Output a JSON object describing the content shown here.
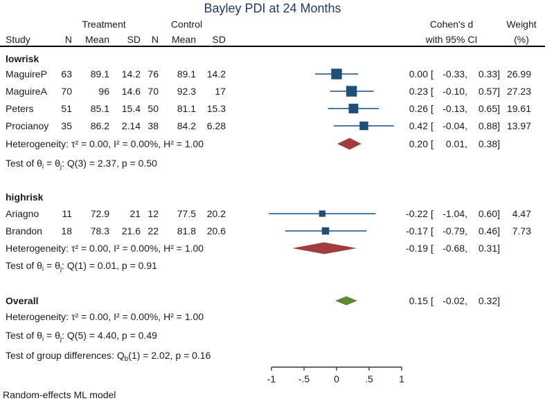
{
  "title": "Bayley PDI at 24 Months",
  "note": "Random-effects ML model",
  "header": {
    "study": "Study",
    "treatment": "Treatment",
    "control": "Control",
    "n": "N",
    "mean": "Mean",
    "sd": "SD",
    "effect_line1": "Cohen's d",
    "effect_line2": "with 95% CI",
    "weight_line1": "Weight",
    "weight_line2": "(%)"
  },
  "colors": {
    "title": "#1f3864",
    "text": "#1a1a1a",
    "square": "#1f4e79",
    "ci_line": "#4a78a6",
    "subgroup_diamond": "#a33c3e",
    "overall_diamond": "#5a8a32",
    "axis": "#333333",
    "rule": "#000000"
  },
  "chart_data": {
    "type": "forest",
    "title": "Bayley PDI at 24 Months",
    "effect_label": "Cohen's d with 95% CI",
    "model_note": "Random-effects ML model",
    "x_axis": {
      "min": -1,
      "max": 1,
      "ticks": [
        {
          "value": -1,
          "label": "-1"
        },
        {
          "value": -0.5,
          "label": "-.5"
        },
        {
          "value": 0,
          "label": "0"
        },
        {
          "value": 0.5,
          "label": ".5"
        },
        {
          "value": 1,
          "label": "1"
        }
      ]
    },
    "groups": [
      {
        "name": "lowrisk",
        "studies": [
          {
            "study": "MaguireP",
            "treatment": {
              "n": "63",
              "mean": "89.1",
              "sd": "14.2"
            },
            "control": {
              "n": "76",
              "mean": "89.1",
              "sd": "14.2"
            },
            "est": 0.0,
            "ci_low": -0.33,
            "ci_high": 0.33,
            "weight": 26.99
          },
          {
            "study": "MaguireA",
            "treatment": {
              "n": "70",
              "mean": "96",
              "sd": "14.6"
            },
            "control": {
              "n": "70",
              "mean": "92.3",
              "sd": "17"
            },
            "est": 0.23,
            "ci_low": -0.1,
            "ci_high": 0.57,
            "weight": 27.23
          },
          {
            "study": "Peters",
            "treatment": {
              "n": "51",
              "mean": "85.1",
              "sd": "15.4"
            },
            "control": {
              "n": "50",
              "mean": "81.1",
              "sd": "15.3"
            },
            "est": 0.26,
            "ci_low": -0.13,
            "ci_high": 0.65,
            "weight": 19.61
          },
          {
            "study": "Procianoy",
            "treatment": {
              "n": "35",
              "mean": "86.2",
              "sd": "2.14"
            },
            "control": {
              "n": "38",
              "mean": "84.2",
              "sd": "6.28"
            },
            "est": 0.42,
            "ci_low": -0.04,
            "ci_high": 0.88,
            "weight": 13.97
          }
        ],
        "heterogeneity": "Heterogeneity: τ² = 0.00, I² = 0.00%, H² = 1.00",
        "summary": {
          "est": 0.2,
          "ci_low": 0.01,
          "ci_high": 0.38
        },
        "test_parts": [
          {
            "text": "Test of θ"
          },
          {
            "text": "i",
            "sub": true
          },
          {
            "text": " = θ"
          },
          {
            "text": "j",
            "sub": true
          },
          {
            "text": ": Q(3) = 2.37, p = 0.50"
          }
        ]
      },
      {
        "name": "highrisk",
        "studies": [
          {
            "study": "Ariagno",
            "treatment": {
              "n": "11",
              "mean": "72.9",
              "sd": "21"
            },
            "control": {
              "n": "12",
              "mean": "77.5",
              "sd": "20.2"
            },
            "est": -0.22,
            "ci_low": -1.04,
            "ci_high": 0.6,
            "weight": 4.47
          },
          {
            "study": "Brandon",
            "treatment": {
              "n": "18",
              "mean": "78.3",
              "sd": "21.6"
            },
            "control": {
              "n": "22",
              "mean": "81.8",
              "sd": "20.6"
            },
            "est": -0.17,
            "ci_low": -0.79,
            "ci_high": 0.46,
            "weight": 7.73
          }
        ],
        "heterogeneity": "Heterogeneity: τ² = 0.00, I² = 0.00%, H² = 1.00",
        "summary": {
          "est": -0.19,
          "ci_low": -0.68,
          "ci_high": 0.31
        },
        "test_parts": [
          {
            "text": "Test of θ"
          },
          {
            "text": "i",
            "sub": true
          },
          {
            "text": " = θ"
          },
          {
            "text": "j",
            "sub": true
          },
          {
            "text": ": Q(1) = 0.01, p = 0.91"
          }
        ]
      }
    ],
    "overall": {
      "label": "Overall",
      "summary": {
        "est": 0.15,
        "ci_low": -0.02,
        "ci_high": 0.32
      },
      "heterogeneity": "Heterogeneity: τ² = 0.00, I² = 0.00%, H² = 1.00",
      "test_parts": [
        {
          "text": "Test of θ"
        },
        {
          "text": "i",
          "sub": true
        },
        {
          "text": " = θ"
        },
        {
          "text": "j",
          "sub": true
        },
        {
          "text": ": Q(5) = 4.40, p = 0.49"
        }
      ]
    },
    "group_diff_parts": [
      {
        "text": "Test of group differences: Q"
      },
      {
        "text": "b",
        "sub": true
      },
      {
        "text": "(1) = 2.02, p = 0.16"
      }
    ],
    "note": "Random-effects ML model"
  }
}
